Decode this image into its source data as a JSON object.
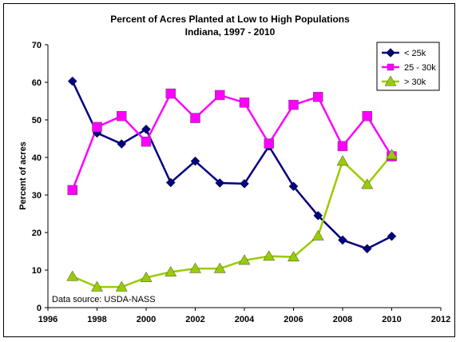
{
  "chart_data": {
    "type": "line",
    "title": "Percent of Acres Planted at Low to High Populations",
    "subtitle": "Indiana, 1997 - 2010",
    "xlabel": "",
    "ylabel": "Percent of acres",
    "xlim": [
      1996,
      2012
    ],
    "ylim": [
      0,
      70
    ],
    "x_ticks": [
      "1996",
      "1998",
      "2000",
      "2002",
      "2004",
      "2006",
      "2008",
      "2010",
      "2012"
    ],
    "y_ticks": [
      "0",
      "10",
      "20",
      "30",
      "40",
      "50",
      "60",
      "70"
    ],
    "grid": false,
    "legend_position": "top-right",
    "annotation": "Data source: USDA-NASS",
    "x": [
      1997,
      1998,
      1999,
      2000,
      2001,
      2002,
      2003,
      2004,
      2005,
      2006,
      2007,
      2008,
      2009,
      2010
    ],
    "series": [
      {
        "name": "< 25k",
        "color": "#000080",
        "marker": "diamond",
        "values": [
          60.3,
          46.5,
          43.6,
          47.5,
          33.3,
          39.0,
          33.2,
          33.0,
          43.0,
          32.3,
          24.5,
          18.0,
          15.7,
          19.0
        ]
      },
      {
        "name": "25 - 30k",
        "color": "#FF00FF",
        "marker": "square",
        "values": [
          31.3,
          48.1,
          51.0,
          44.2,
          57.0,
          50.5,
          56.6,
          54.6,
          43.7,
          54.0,
          56.1,
          43.0,
          51.0,
          40.3
        ]
      },
      {
        "name": "> 30k",
        "color": "#99CC00",
        "marker": "triangle",
        "values": [
          8.3,
          5.5,
          5.5,
          8.0,
          9.5,
          10.4,
          10.4,
          12.6,
          13.7,
          13.5,
          19.1,
          39.0,
          32.8,
          40.7
        ]
      }
    ]
  }
}
